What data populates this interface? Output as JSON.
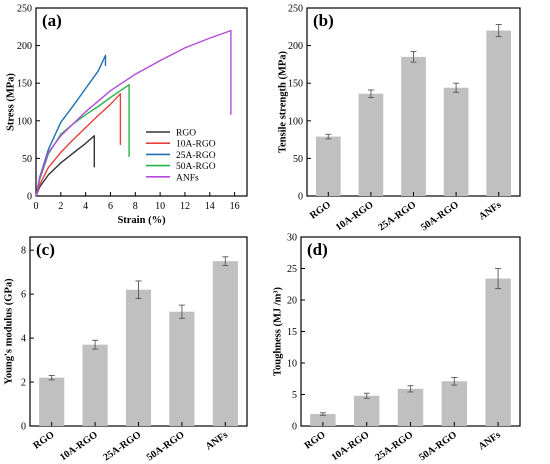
{
  "chart_data": [
    {
      "panel_label": "(a)",
      "type": "line",
      "xlabel": "Strain (%)",
      "ylabel": "Stress (MPa)",
      "xlim": [
        0,
        17
      ],
      "ylim": [
        0,
        250
      ],
      "xticks": [
        "0",
        "2",
        "4",
        "6",
        "8",
        "10",
        "12",
        "14",
        "16"
      ],
      "yticks": [
        "0",
        "50",
        "100",
        "150",
        "200",
        "250"
      ],
      "legend": "bottom-right",
      "series": [
        {
          "name": "RGO",
          "color": "#333333",
          "x": [
            0,
            0.3,
            1,
            2,
            3,
            4,
            4.7,
            4.7
          ],
          "y": [
            0,
            12,
            28,
            44,
            57,
            70,
            80,
            38
          ]
        },
        {
          "name": "10A-RGO",
          "color": "#e8403a",
          "x": [
            0,
            0.3,
            1,
            2,
            3,
            4,
            5,
            6,
            6.8,
            6.8
          ],
          "y": [
            0,
            15,
            38,
            58,
            75,
            91,
            107,
            122,
            136,
            68
          ]
        },
        {
          "name": "25A-RGO",
          "color": "#1f6fb5",
          "x": [
            0,
            0.3,
            1,
            2,
            3,
            4,
            5,
            5.6,
            5.6
          ],
          "y": [
            0,
            25,
            62,
            98,
            120,
            143,
            166,
            187,
            173
          ]
        },
        {
          "name": "50A-RGO",
          "color": "#2db24a",
          "x": [
            0,
            0.3,
            1,
            2,
            3,
            4,
            5,
            6,
            7.5,
            7.5
          ],
          "y": [
            0,
            22,
            56,
            82,
            96,
            108,
            119,
            131,
            148,
            52
          ]
        },
        {
          "name": "ANFs",
          "color": "#b24cd9",
          "x": [
            0,
            0.3,
            1,
            2,
            4,
            6,
            8,
            10,
            12,
            14,
            15.7,
            15.7
          ],
          "y": [
            0,
            24,
            58,
            80,
            112,
            140,
            162,
            180,
            197,
            210,
            220,
            108
          ]
        }
      ]
    },
    {
      "panel_label": "(b)",
      "type": "bar",
      "ylabel": "Tensile strength (MPa)",
      "categories": [
        "RGO",
        "10A-RGO",
        "25A-RGO",
        "50A-RGO",
        "ANFs"
      ],
      "values": [
        79,
        136,
        185,
        144,
        220
      ],
      "errors": [
        3,
        5,
        7,
        6,
        8
      ],
      "ylim": [
        0,
        250
      ],
      "yticks": [
        "0",
        "50",
        "100",
        "150",
        "200",
        "250"
      ]
    },
    {
      "panel_label": "(c)",
      "type": "bar",
      "ylabel": "Young's modulus (GPa)",
      "categories": [
        "RGO",
        "10A-RGO",
        "25A-RGO",
        "50A-RGO",
        "ANFs"
      ],
      "values": [
        2.2,
        3.7,
        6.2,
        5.2,
        7.5
      ],
      "errors": [
        0.1,
        0.2,
        0.4,
        0.3,
        0.2
      ],
      "ylim": [
        0,
        8.6
      ],
      "yticks": [
        "0",
        "2",
        "4",
        "6",
        "8"
      ]
    },
    {
      "panel_label": "(d)",
      "type": "bar",
      "ylabel": "Toughness (MJ /m³)",
      "categories": [
        "RGO",
        "10A-RGO",
        "25A-RGO",
        "50A-RGO",
        "ANFs"
      ],
      "values": [
        1.9,
        4.8,
        5.9,
        7.1,
        23.4
      ],
      "errors": [
        0.2,
        0.4,
        0.5,
        0.6,
        1.6
      ],
      "ylim": [
        0,
        30
      ],
      "yticks": [
        "0",
        "5",
        "10",
        "15",
        "20",
        "25",
        "30"
      ]
    }
  ],
  "colors": {
    "bar_fill": "#c0c0c0",
    "axis": "#000000"
  }
}
